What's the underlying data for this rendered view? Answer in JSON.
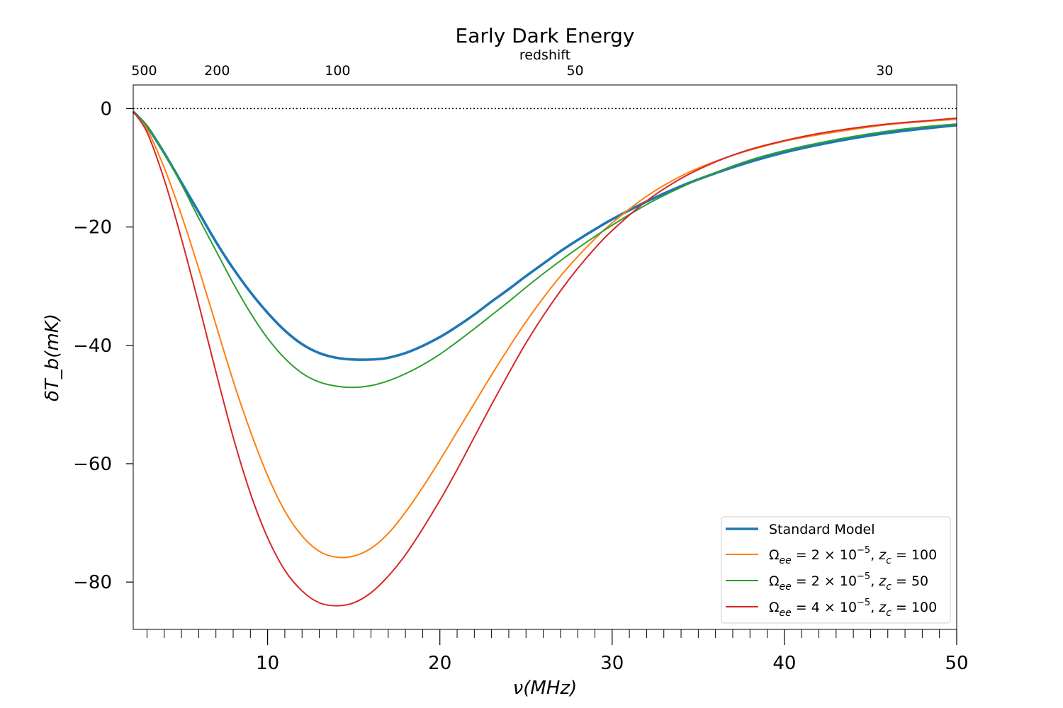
{
  "chart_data": {
    "type": "line",
    "title": "Early Dark Energy",
    "xlabel": "ν(MHz)",
    "ylabel": "δT_b(mK)",
    "top_axis_label": "redshift",
    "xlim": [
      2.2,
      50
    ],
    "ylim": [
      -88,
      4
    ],
    "x_ticks": [
      10,
      20,
      30,
      40,
      50
    ],
    "y_ticks": [
      0,
      -20,
      -40,
      -60,
      -80
    ],
    "top_ticks": [
      {
        "z": 500,
        "label": "500"
      },
      {
        "z": 200,
        "label": "200"
      },
      {
        "z": 100,
        "label": "100"
      },
      {
        "z": 50,
        "label": "50"
      },
      {
        "z": 30,
        "label": "30"
      }
    ],
    "zero_line": 0,
    "legend_position": "lower-right",
    "series": [
      {
        "name": "Standard Model",
        "legend": {
          "pre": "Standard Model"
        },
        "color": "#1f77b4",
        "x": [
          2.2,
          3,
          4,
          5,
          6,
          7,
          8,
          9,
          10,
          11,
          12,
          13,
          14,
          15,
          16,
          16.5,
          17,
          18,
          19,
          20,
          21,
          22,
          23,
          24,
          25,
          26,
          27,
          28,
          29,
          30,
          32,
          34,
          36,
          38,
          40,
          42,
          44,
          46,
          48,
          50
        ],
        "y": [
          -0.5,
          -3,
          -7.5,
          -12.5,
          -17.5,
          -22.5,
          -27,
          -31,
          -34.5,
          -37.5,
          -39.8,
          -41.3,
          -42.1,
          -42.4,
          -42.4,
          -42.3,
          -42.1,
          -41.3,
          -40.1,
          -38.6,
          -36.8,
          -34.8,
          -32.6,
          -30.5,
          -28.3,
          -26.2,
          -24.1,
          -22.2,
          -20.4,
          -18.7,
          -15.7,
          -13.1,
          -10.9,
          -9.0,
          -7.4,
          -6.1,
          -5.0,
          -4.1,
          -3.4,
          -2.8
        ]
      },
      {
        "name": "Ωee = 2 × 10⁻⁵, zc = 100",
        "legend": {
          "pre": "Ω",
          "sub1": "ee",
          "mid": " = 2 × 10",
          "sup": "−5",
          "mid2": ", z",
          "sub2": "c",
          "post": " = 100"
        },
        "color": "#ff7f0e",
        "x": [
          2.2,
          3,
          4,
          5,
          6,
          7,
          8,
          9,
          10,
          11,
          12,
          13,
          14,
          15,
          16,
          17,
          18,
          19,
          20,
          21,
          22,
          23,
          24,
          25,
          26,
          27,
          28,
          29,
          30,
          32,
          34,
          36,
          38,
          40,
          42,
          44,
          46,
          48,
          50
        ],
        "y": [
          -0.5,
          -3.5,
          -10,
          -18,
          -27,
          -36.5,
          -46,
          -54.5,
          -62,
          -68,
          -72.2,
          -74.8,
          -75.8,
          -75.6,
          -74.3,
          -71.8,
          -68.2,
          -64,
          -59.4,
          -54.6,
          -49.8,
          -45,
          -40.4,
          -36,
          -32,
          -28.3,
          -25,
          -22,
          -19.3,
          -14.8,
          -11.4,
          -8.9,
          -7,
          -5.5,
          -4.4,
          -3.5,
          -2.7,
          -2.2,
          -1.8
        ]
      },
      {
        "name": "Ωee = 2 × 10⁻⁵, zc = 50",
        "legend": {
          "pre": "Ω",
          "sub1": "ee",
          "mid": " = 2 × 10",
          "sup": "−5",
          "mid2": ", z",
          "sub2": "c",
          "post": " = 50"
        },
        "color": "#2ca02c",
        "x": [
          2.2,
          3,
          4,
          5,
          6,
          7,
          8,
          9,
          10,
          11,
          12,
          13,
          14,
          15,
          16,
          17,
          18,
          19,
          20,
          21,
          22,
          23,
          24,
          25,
          26,
          27,
          28,
          29,
          30,
          32,
          34,
          36,
          38,
          40,
          42,
          44,
          46,
          48,
          50
        ],
        "y": [
          -0.5,
          -3,
          -7.5,
          -12.8,
          -18.5,
          -24,
          -29.5,
          -34.5,
          -38.8,
          -42.2,
          -44.7,
          -46.2,
          -46.9,
          -47.1,
          -46.8,
          -46,
          -44.8,
          -43.3,
          -41.5,
          -39.4,
          -37.2,
          -34.9,
          -32.6,
          -30.2,
          -27.9,
          -25.7,
          -23.6,
          -21.6,
          -19.7,
          -16.2,
          -13.3,
          -10.8,
          -8.7,
          -7.1,
          -5.8,
          -4.7,
          -3.8,
          -3.1,
          -2.6
        ]
      },
      {
        "name": "Ωee = 4 × 10⁻⁵, zc = 100",
        "legend": {
          "pre": "Ω",
          "sub1": "ee",
          "mid": " = 4 × 10",
          "sup": "−5",
          "mid2": ", z",
          "sub2": "c",
          "post": " = 100"
        },
        "color": "#d62728",
        "x": [
          2.2,
          3,
          4,
          5,
          6,
          7,
          8,
          9,
          10,
          11,
          12,
          13,
          14,
          15,
          16,
          17,
          18,
          19,
          20,
          21,
          22,
          23,
          24,
          25,
          26,
          27,
          28,
          29,
          30,
          32,
          34,
          36,
          38,
          40,
          42,
          44,
          46,
          48,
          50
        ],
        "y": [
          -0.5,
          -4,
          -12,
          -22,
          -33,
          -44.5,
          -55.5,
          -65,
          -72.5,
          -78,
          -81.5,
          -83.5,
          -84,
          -83.5,
          -81.8,
          -79,
          -75.4,
          -71,
          -66.2,
          -61,
          -55.5,
          -50,
          -44.7,
          -39.6,
          -35,
          -30.8,
          -27,
          -23.6,
          -20.6,
          -15.6,
          -11.8,
          -9,
          -6.9,
          -5.4,
          -4.2,
          -3.3,
          -2.6,
          -2.1,
          -1.6
        ]
      }
    ]
  }
}
